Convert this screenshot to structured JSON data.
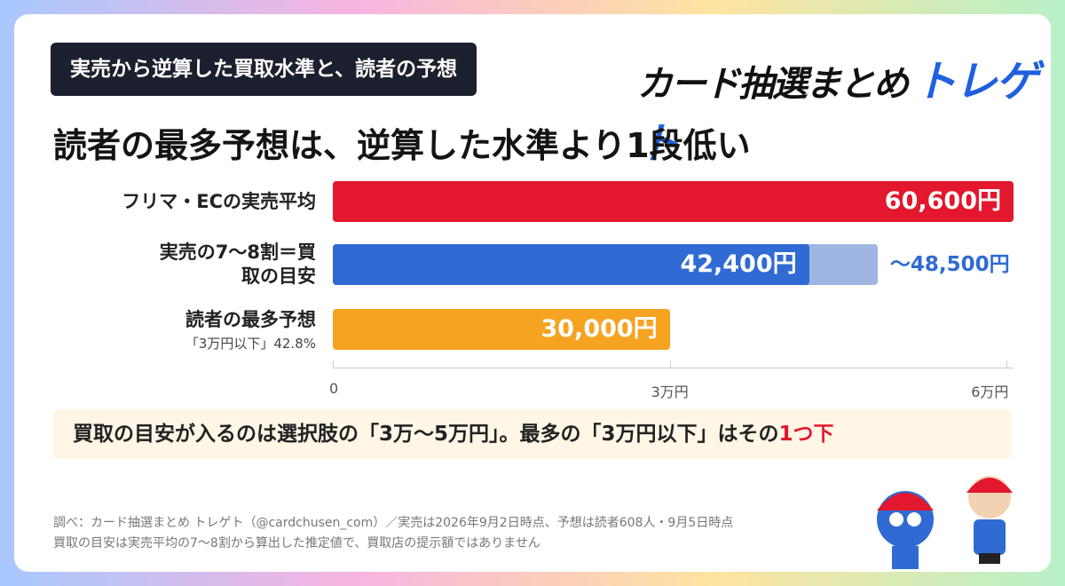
{
  "header": {
    "tag": "実売から逆算した買取水準と、読者の予想",
    "logo": "カード抽選まとめ",
    "brand": "トレゲト"
  },
  "chart_data": {
    "type": "bar",
    "orientation": "horizontal",
    "title": "読者の最多予想は、逆算した水準より1段低い",
    "categories": [
      "フリマ・ECの実売平均",
      "実売の7〜8割＝買取の目安",
      "読者の最多予想"
    ],
    "category_notes": [
      null,
      null,
      "「3万円以下」42.8%"
    ],
    "values": [
      60600,
      42400,
      30000
    ],
    "value_labels": [
      "60,600円",
      "42,400円",
      "30,000円"
    ],
    "colors": [
      "#e3172d",
      "#2f6bd3",
      "#f5a321"
    ],
    "range_upper": [
      null,
      48500,
      null
    ],
    "range_upper_labels": [
      null,
      "〜48,500円",
      null
    ],
    "range_color": "#9fb5e2",
    "xlim": [
      0,
      60600
    ],
    "xticks": [
      0,
      {
        "value": 30000,
        "label": "3万円"
      },
      {
        "value": 60000,
        "label": "6万円"
      }
    ]
  },
  "callout": {
    "text": "買取の目安が入るのは選択肢の「3万〜5万円」。最多の「3万円以下」はその",
    "emphasis": "1つ下"
  },
  "footnotes": [
    "調べ：カード抽選まとめ トレゲト（@cardchusen_com）／実売は2026年9月2日時点、予想は読者608人・9月5日時点",
    "買取の目安は実売平均の7〜8割から算出した推定値で、買取店の提示額ではありません"
  ]
}
